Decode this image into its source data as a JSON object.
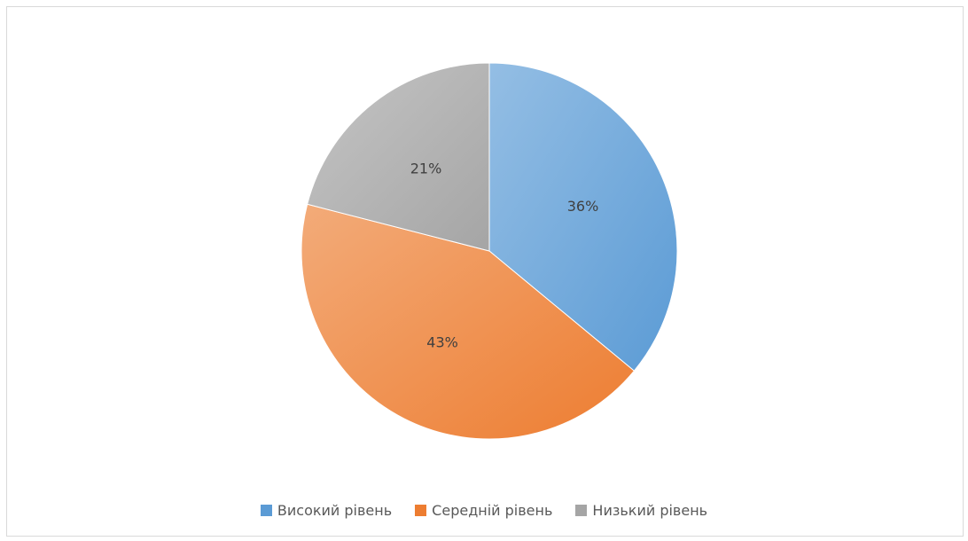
{
  "chart_data": {
    "type": "pie",
    "title": "",
    "categories": [
      "Високий рівень",
      "Середній рівень",
      "Низький рівень"
    ],
    "values": [
      36,
      43,
      21
    ],
    "labels": [
      "36%",
      "43%",
      "21%"
    ],
    "colors": [
      "#5b9bd5",
      "#ed7d31",
      "#a5a5a5"
    ],
    "start_angle_deg": 0,
    "direction": "clockwise",
    "legend_position": "bottom"
  },
  "legend": {
    "items": [
      {
        "label": "Високий рівень",
        "color": "#5b9bd5"
      },
      {
        "label": "Середній рівень",
        "color": "#ed7d31"
      },
      {
        "label": "Низький рівень",
        "color": "#a5a5a5"
      }
    ]
  }
}
